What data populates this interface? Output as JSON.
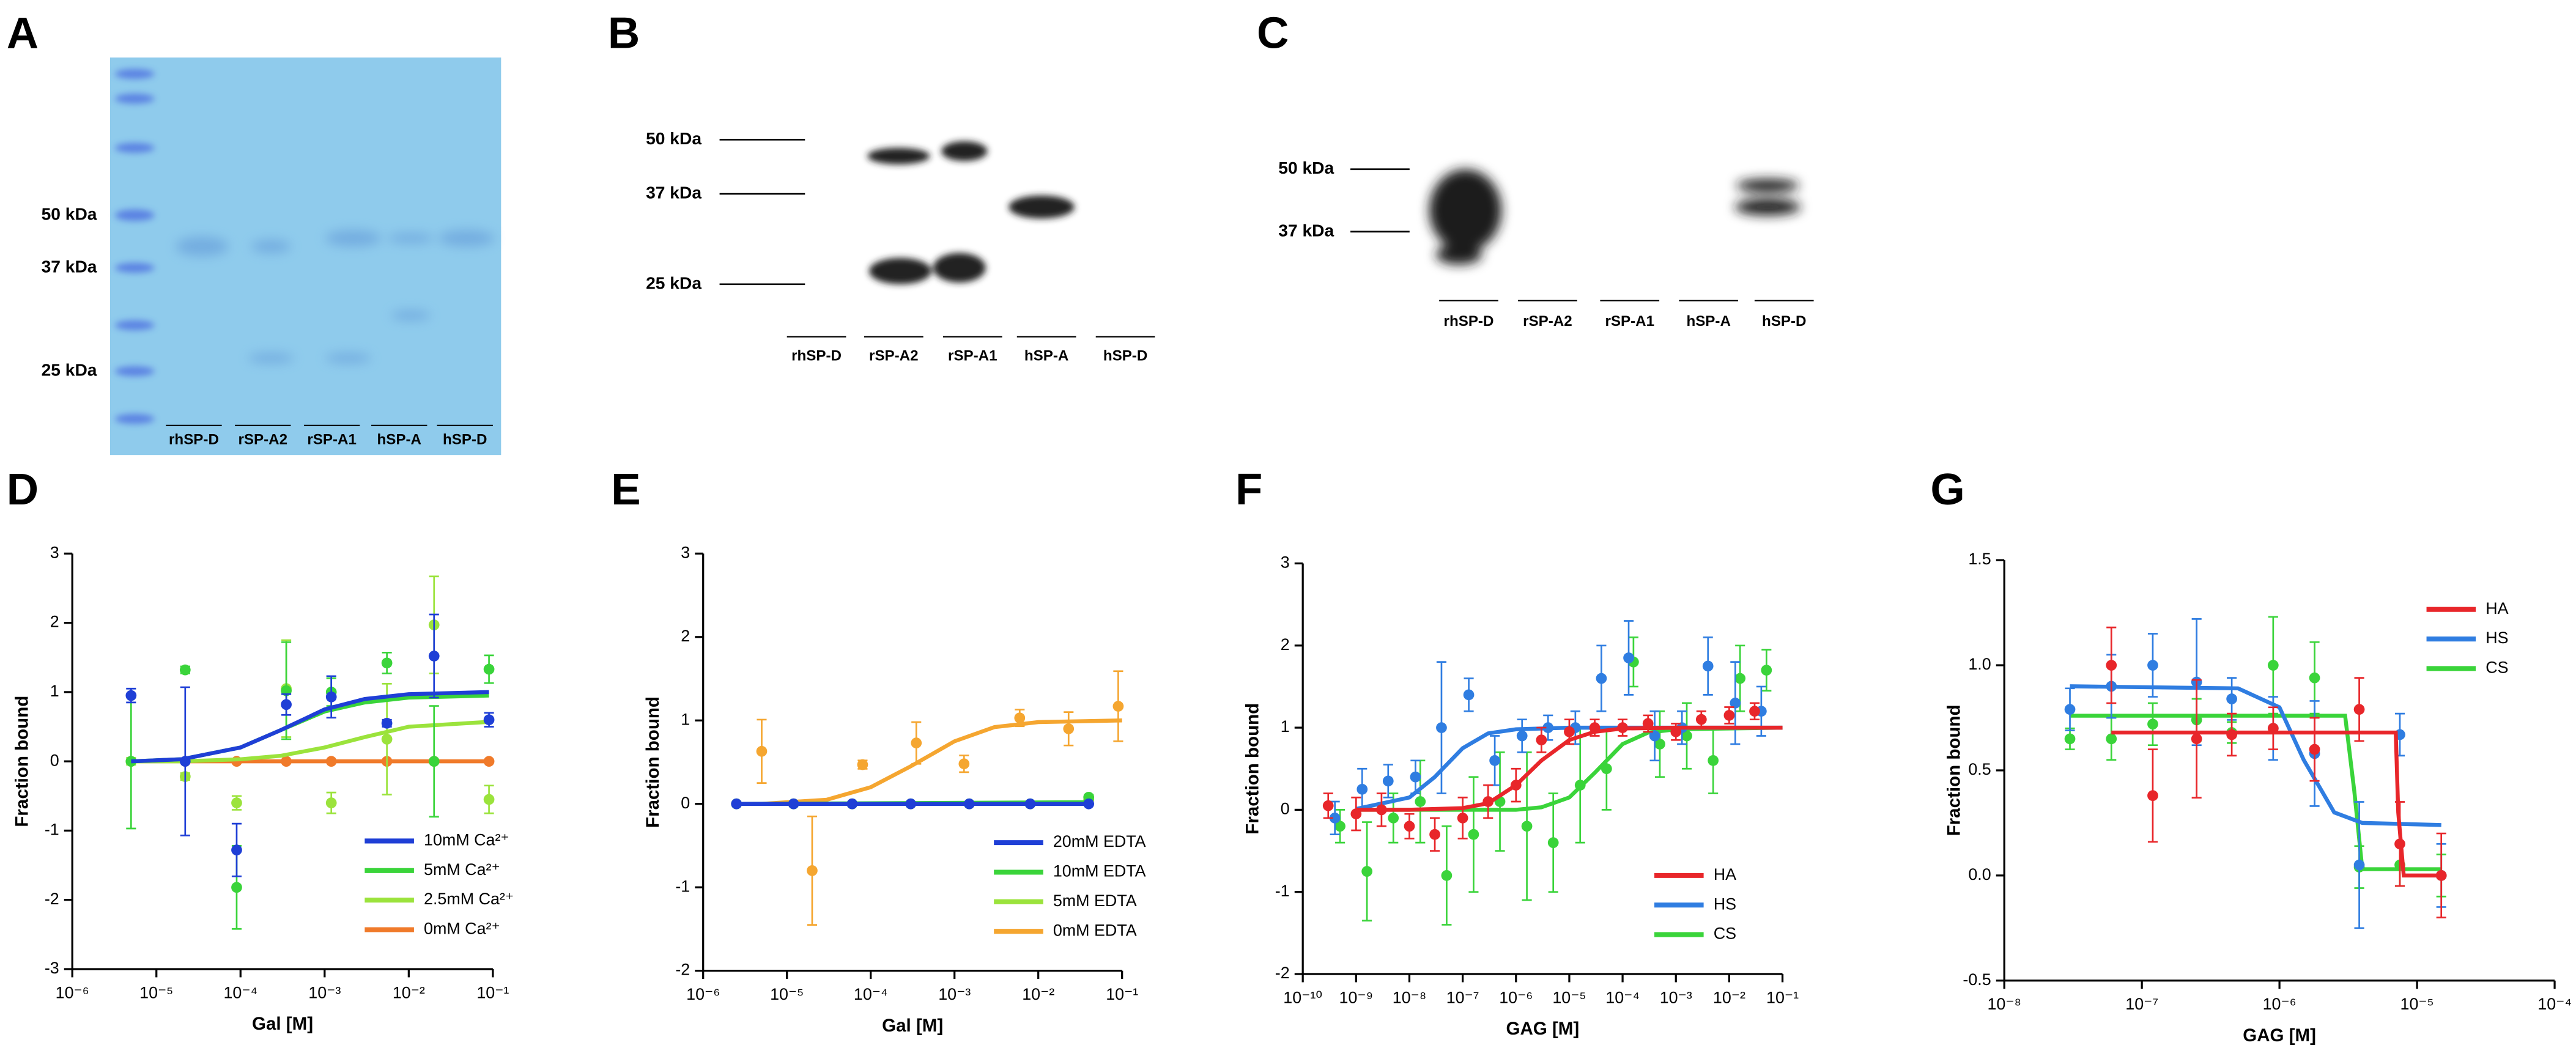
{
  "gels": [
    {
      "letter": "A",
      "markers": [
        "50 kDa",
        "37 kDa",
        "25 kDa"
      ],
      "lanes": [
        "rhSP-D",
        "rSP-A2",
        "rSP-A1",
        "hSP-A",
        "hSP-D"
      ]
    },
    {
      "letter": "B",
      "markers": [
        "50 kDa",
        "37 kDa",
        "25 kDa"
      ],
      "lanes": [
        "rhSP-D",
        "rSP-A2",
        "rSP-A1",
        "hSP-A",
        "hSP-D"
      ]
    },
    {
      "letter": "C",
      "markers": [
        "50 kDa",
        "37 kDa"
      ],
      "lanes": [
        "rhSP-D",
        "rSP-A2",
        "rSP-A1",
        "hSP-A",
        "hSP-D"
      ]
    }
  ],
  "chart_data": [
    {
      "type": "scatter",
      "letter": "D",
      "xlabel": "Gal [M]",
      "ylabel": "Fraction bound",
      "xscale": "log",
      "legend": "lower right",
      "xlim": [
        1e-06,
        0.1
      ],
      "xticks": [
        {
          "value": 1e-06,
          "label": "10⁻⁶"
        },
        {
          "value": 1e-05,
          "label": "10⁻⁵"
        },
        {
          "value": 0.0001,
          "label": "10⁻⁴"
        },
        {
          "value": 0.001,
          "label": "10⁻³"
        },
        {
          "value": 0.01,
          "label": "10⁻²"
        },
        {
          "value": 0.1,
          "label": "10⁻¹"
        }
      ],
      "ylim": [
        -3,
        3
      ],
      "yticks": [
        -3,
        -2,
        -1,
        0,
        1,
        2,
        3
      ],
      "series": [
        {
          "name": "10mM Ca²⁺",
          "color": "#1f3fd6",
          "x": [
            5e-06,
            2.2e-05,
            9e-05,
            0.00035,
            0.0012,
            0.0055,
            0.02,
            0.09
          ],
          "values": [
            0.95,
            0,
            -1.28,
            0.82,
            0.93,
            0.55,
            1.52,
            0.6
          ],
          "errors": [
            0.1,
            1.07,
            0.38,
            0.15,
            0.3,
            0.05,
            0.6,
            0.1
          ],
          "fit_x": [
            5e-06,
            2e-05,
            0.0001,
            0.0003,
            0.001,
            0.003,
            0.01,
            0.09
          ],
          "fit_values": [
            0,
            0.03,
            0.2,
            0.45,
            0.75,
            0.9,
            0.97,
            1.0
          ]
        },
        {
          "name": "5mM Ca²⁺",
          "color": "#3ad43a",
          "x": [
            5e-06,
            2.2e-05,
            9e-05,
            0.00035,
            0.0012,
            0.0055,
            0.02,
            0.09
          ],
          "values": [
            0,
            1.32,
            -1.82,
            1.02,
            1.0,
            1.42,
            0,
            1.33
          ],
          "errors": [
            0.97,
            0.05,
            0.6,
            0.7,
            0.2,
            0.15,
            0.8,
            0.2
          ],
          "fit_x": [
            5e-06,
            2e-05,
            0.0001,
            0.0003,
            0.001,
            0.003,
            0.01,
            0.09
          ],
          "fit_values": [
            0,
            0.03,
            0.2,
            0.45,
            0.72,
            0.85,
            0.92,
            0.95
          ]
        },
        {
          "name": "2.5mM Ca²⁺",
          "color": "#9be33c",
          "x": [
            5e-06,
            2.2e-05,
            9e-05,
            0.00035,
            0.0012,
            0.0055,
            0.02,
            0.09
          ],
          "values": [
            0,
            -0.22,
            -0.6,
            1.05,
            -0.6,
            0.32,
            1.97,
            -0.55
          ],
          "errors": [
            0.05,
            0.05,
            0.1,
            0.7,
            0.15,
            0.8,
            0.7,
            0.2
          ],
          "fit_x": [
            5e-06,
            2e-05,
            0.0001,
            0.0003,
            0.001,
            0.003,
            0.01,
            0.09
          ],
          "fit_values": [
            0,
            0,
            0.03,
            0.08,
            0.2,
            0.35,
            0.5,
            0.57
          ]
        },
        {
          "name": "0mM Ca²⁺",
          "color": "#f07a2a",
          "x": [
            5e-06,
            2.2e-05,
            9e-05,
            0.00035,
            0.0012,
            0.0055,
            0.02,
            0.09
          ],
          "values": [
            0,
            0,
            0,
            0,
            0,
            0,
            0,
            0
          ],
          "errors": [
            0,
            0,
            0,
            0,
            0,
            0,
            0,
            0
          ],
          "fit_x": [
            5e-06,
            0.09
          ],
          "fit_values": [
            0,
            0
          ]
        }
      ]
    },
    {
      "type": "scatter",
      "letter": "E",
      "xlabel": "Gal [M]",
      "ylabel": "Fraction bound",
      "xscale": "log",
      "legend": "lower right",
      "xlim": [
        1e-06,
        0.1
      ],
      "xticks": [
        {
          "value": 1e-06,
          "label": "10⁻⁶"
        },
        {
          "value": 1e-05,
          "label": "10⁻⁵"
        },
        {
          "value": 0.0001,
          "label": "10⁻⁴"
        },
        {
          "value": 0.001,
          "label": "10⁻³"
        },
        {
          "value": 0.01,
          "label": "10⁻²"
        },
        {
          "value": 0.1,
          "label": "10⁻¹"
        }
      ],
      "ylim": [
        -2,
        3
      ],
      "yticks": [
        -2,
        -1,
        0,
        1,
        2,
        3
      ],
      "series": [
        {
          "name": "20mM EDTA",
          "color": "#1f3fd6",
          "x": [
            2.5e-06,
            1.2e-05,
            6e-05,
            0.0003,
            0.0015,
            0.008,
            0.04
          ],
          "values": [
            0,
            0,
            0,
            0,
            0,
            0,
            0
          ],
          "errors": [
            0,
            0,
            0,
            0,
            0,
            0,
            0
          ],
          "fit_x": [
            2.5e-06,
            0.04
          ],
          "fit_values": [
            0,
            0
          ]
        },
        {
          "name": "10mM EDTA",
          "color": "#3ad43a",
          "x": [
            2.5e-06,
            1.2e-05,
            6e-05,
            0.0003,
            0.0015,
            0.008,
            0.04
          ],
          "values": [
            0,
            0,
            0,
            0,
            0,
            0,
            0.08
          ],
          "errors": [
            0,
            0,
            0,
            0,
            0,
            0,
            0.03
          ],
          "fit_x": [
            2.5e-06,
            0.04
          ],
          "fit_values": [
            0,
            0.02
          ]
        },
        {
          "name": "5mM EDTA",
          "color": "#9be33c",
          "x": [
            2.5e-06,
            1.2e-05,
            6e-05,
            0.0003,
            0.0015,
            0.008,
            0.04
          ],
          "values": [
            0,
            0,
            0,
            0,
            0,
            0,
            0.05
          ],
          "errors": [
            0,
            0,
            0,
            0,
            0,
            0,
            0.03
          ],
          "fit_x": [
            2.5e-06,
            0.04
          ],
          "fit_values": [
            0,
            0.01
          ]
        },
        {
          "name": "0mM EDTA",
          "color": "#f5a630",
          "x": [
            5e-06,
            2e-05,
            8e-05,
            0.00035,
            0.0013,
            0.006,
            0.023,
            0.09
          ],
          "values": [
            0.63,
            -0.8,
            0.47,
            0.73,
            0.48,
            1.03,
            0.9,
            1.17
          ],
          "errors": [
            0.38,
            0.65,
            0.05,
            0.25,
            0.1,
            0.1,
            0.2,
            0.42
          ],
          "fit_x": [
            5e-06,
            3e-05,
            0.0001,
            0.0003,
            0.001,
            0.003,
            0.01,
            0.1
          ],
          "fit_values": [
            0,
            0.05,
            0.2,
            0.45,
            0.75,
            0.92,
            0.98,
            1.0
          ]
        }
      ]
    },
    {
      "type": "scatter",
      "letter": "F",
      "xlabel": "GAG [M]",
      "ylabel": "Fraction bound",
      "xscale": "log",
      "legend": "lower right",
      "xlim": [
        1e-10,
        0.1
      ],
      "xticks": [
        {
          "value": 1e-10,
          "label": "10⁻¹⁰"
        },
        {
          "value": 1e-09,
          "label": "10⁻⁹"
        },
        {
          "value": 1e-08,
          "label": "10⁻⁸"
        },
        {
          "value": 1e-07,
          "label": "10⁻⁷"
        },
        {
          "value": 1e-06,
          "label": "10⁻⁶"
        },
        {
          "value": 1e-05,
          "label": "10⁻⁵"
        },
        {
          "value": 0.0001,
          "label": "10⁻⁴"
        },
        {
          "value": 0.001,
          "label": "10⁻³"
        },
        {
          "value": 0.01,
          "label": "10⁻²"
        },
        {
          "value": 0.1,
          "label": "10⁻¹"
        }
      ],
      "ylim": [
        -2,
        3
      ],
      "yticks": [
        -2,
        -1,
        0,
        1,
        2,
        3
      ],
      "series": [
        {
          "name": "HA",
          "color": "#e8262a",
          "x": [
            3e-10,
            1e-09,
            3e-09,
            1e-08,
            3e-08,
            1e-07,
            3e-07,
            1e-06,
            3e-06,
            1e-05,
            3e-05,
            0.0001,
            0.0003,
            0.001,
            0.003,
            0.01,
            0.03
          ],
          "values": [
            0.05,
            -0.05,
            0,
            -0.2,
            -0.3,
            -0.1,
            0.1,
            0.3,
            0.85,
            0.95,
            1.0,
            1.0,
            1.05,
            0.95,
            1.1,
            1.15,
            1.2
          ],
          "errors": [
            0.15,
            0.2,
            0.2,
            0.15,
            0.2,
            0.25,
            0.2,
            0.2,
            0.15,
            0.15,
            0.1,
            0.1,
            0.1,
            0.1,
            0.1,
            0.1,
            0.1
          ],
          "fit_x": [
            1e-09,
            1e-08,
            1e-07,
            3e-07,
            1e-06,
            3e-06,
            1e-05,
            3e-05,
            0.0001,
            0.001,
            0.1
          ],
          "fit_values": [
            0,
            0,
            0.02,
            0.08,
            0.3,
            0.6,
            0.85,
            0.95,
            0.99,
            1,
            1
          ]
        },
        {
          "name": "HS",
          "color": "#2f7de1",
          "x": [
            4e-10,
            1.3e-09,
            4e-09,
            1.3e-08,
            4e-08,
            1.3e-07,
            4e-07,
            1.3e-06,
            4e-06,
            1.3e-05,
            4e-05,
            0.00013,
            0.0004,
            0.0013,
            0.004,
            0.013,
            0.04
          ],
          "values": [
            -0.1,
            0.25,
            0.35,
            0.4,
            1.0,
            1.4,
            0.6,
            0.9,
            1.0,
            1.0,
            1.6,
            1.85,
            0.9,
            1.0,
            1.75,
            1.3,
            1.2
          ],
          "errors": [
            0.2,
            0.25,
            0.2,
            0.2,
            0.8,
            0.2,
            0.3,
            0.2,
            0.15,
            0.2,
            0.4,
            0.45,
            0.3,
            0.2,
            0.35,
            0.5,
            0.3
          ],
          "fit_x": [
            1e-09,
            1e-08,
            3e-08,
            1e-07,
            3e-07,
            1e-06,
            1e-05,
            0.1
          ],
          "fit_values": [
            0.01,
            0.15,
            0.4,
            0.75,
            0.93,
            0.98,
            1,
            1
          ]
        },
        {
          "name": "CS",
          "color": "#3ad43a",
          "x": [
            5e-10,
            1.6e-09,
            5e-09,
            1.6e-08,
            5e-08,
            1.6e-07,
            5e-07,
            1.6e-06,
            5e-06,
            1.6e-05,
            5e-05,
            0.00016,
            0.0005,
            0.0016,
            0.005,
            0.016,
            0.05
          ],
          "values": [
            -0.2,
            -0.75,
            -0.1,
            0.1,
            -0.8,
            -0.3,
            0.1,
            -0.2,
            -0.4,
            0.3,
            0.5,
            1.8,
            0.8,
            0.9,
            0.6,
            1.6,
            1.7
          ],
          "errors": [
            0.2,
            0.6,
            0.3,
            0.5,
            0.6,
            0.7,
            0.6,
            0.9,
            0.6,
            0.7,
            0.5,
            0.3,
            0.4,
            0.4,
            0.4,
            0.4,
            0.25
          ],
          "fit_x": [
            1e-09,
            1e-06,
            3e-06,
            1e-05,
            3e-05,
            0.0001,
            0.0003,
            0.001,
            0.1
          ],
          "fit_values": [
            0,
            0,
            0.03,
            0.15,
            0.45,
            0.8,
            0.94,
            0.98,
            1
          ]
        }
      ]
    },
    {
      "type": "scatter",
      "letter": "G",
      "xlabel": "GAG [M]",
      "ylabel": "Fraction bound",
      "xscale": "log",
      "legend": "upper right",
      "xlim": [
        1e-08,
        0.0001
      ],
      "xticks": [
        {
          "value": 1e-08,
          "label": "10⁻⁸"
        },
        {
          "value": 1e-07,
          "label": "10⁻⁷"
        },
        {
          "value": 1e-06,
          "label": "10⁻⁶"
        },
        {
          "value": 1e-05,
          "label": "10⁻⁵"
        },
        {
          "value": 0.0001,
          "label": "10⁻⁴"
        }
      ],
      "ylim": [
        -0.5,
        1.5
      ],
      "yticks": [
        -0.5,
        {
          "value": 0,
          "label": "0.0"
        },
        0.5,
        {
          "value": 1,
          "label": "1.0"
        },
        1.5
      ],
      "series": [
        {
          "name": "HA",
          "color": "#e8262a",
          "x": [
            6e-08,
            1.2e-07,
            2.5e-07,
            4.5e-07,
            9e-07,
            1.8e-06,
            3.8e-06,
            7.5e-06,
            1.5e-05
          ],
          "values": [
            1.0,
            0.38,
            0.65,
            0.67,
            0.7,
            0.6,
            0.79,
            0.15,
            0.0
          ],
          "errors": [
            0.18,
            0.22,
            0.28,
            0.1,
            0.1,
            0.15,
            0.15,
            0.2,
            0.2
          ],
          "fit_x": [
            6e-08,
            7e-06,
            7.3e-06,
            8e-06,
            1.5e-05
          ],
          "fit_values": [
            0.68,
            0.68,
            0.3,
            0,
            0
          ]
        },
        {
          "name": "HS",
          "color": "#2f7de1",
          "x": [
            3e-08,
            6e-08,
            1.2e-07,
            2.5e-07,
            4.5e-07,
            9e-07,
            1.8e-06,
            3.8e-06,
            7.5e-06,
            1.5e-05
          ],
          "values": [
            0.79,
            0.9,
            1.0,
            0.92,
            0.84,
            0.7,
            0.58,
            0.05,
            0.67,
            0.0
          ],
          "errors": [
            0.1,
            0.15,
            0.15,
            0.3,
            0.1,
            0.15,
            0.25,
            0.3,
            0.1,
            0.15
          ],
          "fit_x": [
            3e-08,
            5e-07,
            1e-06,
            1.5e-06,
            2.5e-06,
            4e-06,
            1.5e-05
          ],
          "fit_values": [
            0.9,
            0.89,
            0.8,
            0.55,
            0.3,
            0.25,
            0.24
          ]
        },
        {
          "name": "CS",
          "color": "#3ad43a",
          "x": [
            3e-08,
            6e-08,
            1.2e-07,
            2.5e-07,
            4.5e-07,
            9e-07,
            1.8e-06,
            3.8e-06,
            7.5e-06,
            1.5e-05
          ],
          "values": [
            0.65,
            0.65,
            0.72,
            0.74,
            0.68,
            1.0,
            0.94,
            0.04,
            0.05,
            0.0
          ],
          "errors": [
            0.05,
            0.1,
            0.1,
            0.1,
            0.05,
            0.23,
            0.17,
            0.1,
            0.1,
            0.1
          ],
          "fit_x": [
            3e-08,
            3e-06,
            3.5e-06,
            4e-06,
            1.5e-05
          ],
          "fit_values": [
            0.76,
            0.76,
            0.4,
            0.03,
            0.03
          ]
        }
      ]
    }
  ]
}
